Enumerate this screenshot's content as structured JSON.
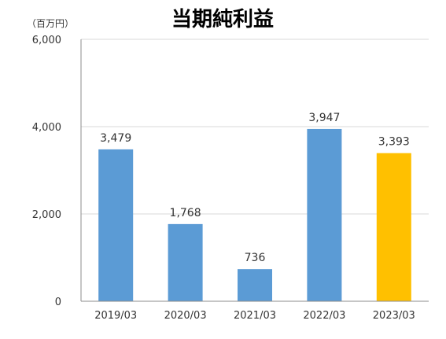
{
  "chart_data": {
    "type": "bar",
    "title": "当期純利益",
    "unit_label": "（百万円）",
    "categories": [
      "2019/03",
      "2020/03",
      "2021/03",
      "2022/03",
      "2023/03"
    ],
    "values": [
      3479,
      1768,
      736,
      3947,
      3393
    ],
    "value_labels": [
      "3,479",
      "1,768",
      "736",
      "3,947",
      "3,393"
    ],
    "ylim": [
      0,
      6000
    ],
    "yticks": [
      0,
      2000,
      4000,
      6000
    ],
    "ytick_labels": [
      "0",
      "2,000",
      "4,000",
      "6,000"
    ],
    "grid": true,
    "bar_colors": [
      "#5b9bd5",
      "#5b9bd5",
      "#5b9bd5",
      "#5b9bd5",
      "#ffc000"
    ]
  }
}
